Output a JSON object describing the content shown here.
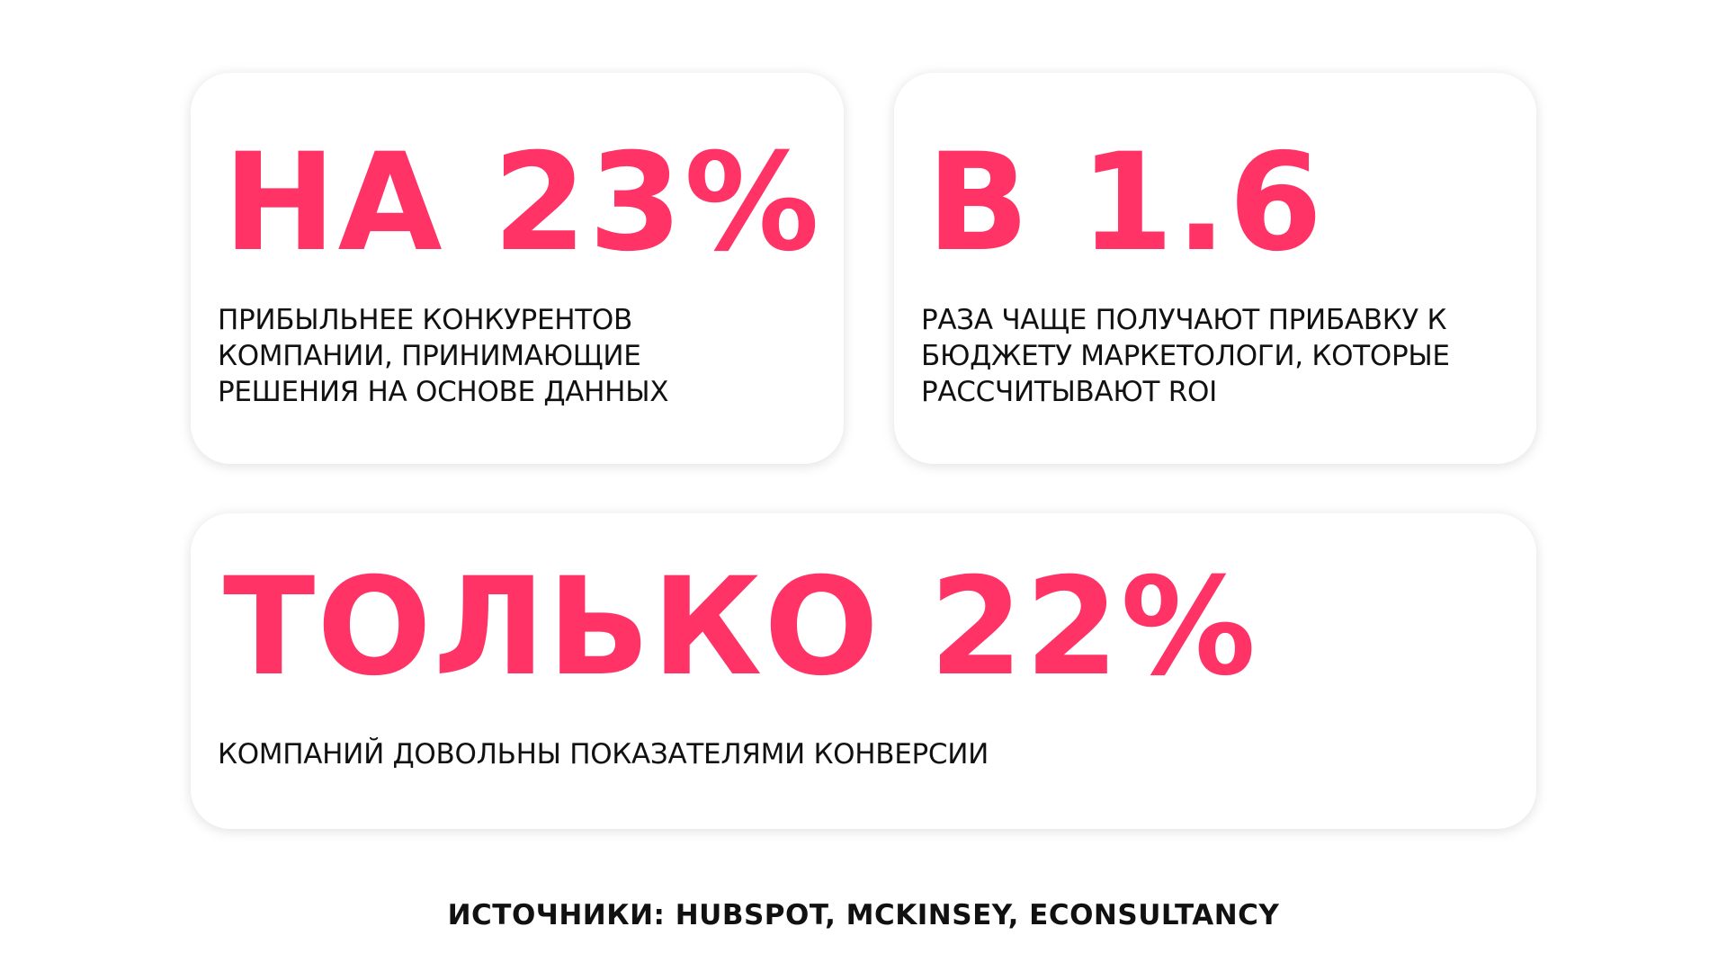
{
  "accent_color": "#ff3366",
  "cards": [
    {
      "headline": "НА 23%",
      "text": "ПРИБЫЛЬНЕЕ КОНКУРЕНТОВ\nКОМПАНИИ, ПРИНИМАЮЩИЕ\nРЕШЕНИЯ НА ОСНОВЕ ДАННЫХ"
    },
    {
      "headline": "В 1.6",
      "text": "РАЗА ЧАЩЕ ПОЛУЧАЮТ ПРИБАВКУ К\nБЮДЖЕТУ МАРКЕТОЛОГИ, КОТОРЫЕ\nРАССЧИТЫВАЮТ ROI"
    },
    {
      "headline": "ТОЛЬКО 22%",
      "text": "КОМПАНИЙ ДОВОЛЬНЫ ПОКАЗАТЕЛЯМИ КОНВЕРСИИ"
    }
  ],
  "sources": "ИСТОЧНИКИ: HUBSPOT, MCKINSEY, ECONSULTANCY"
}
